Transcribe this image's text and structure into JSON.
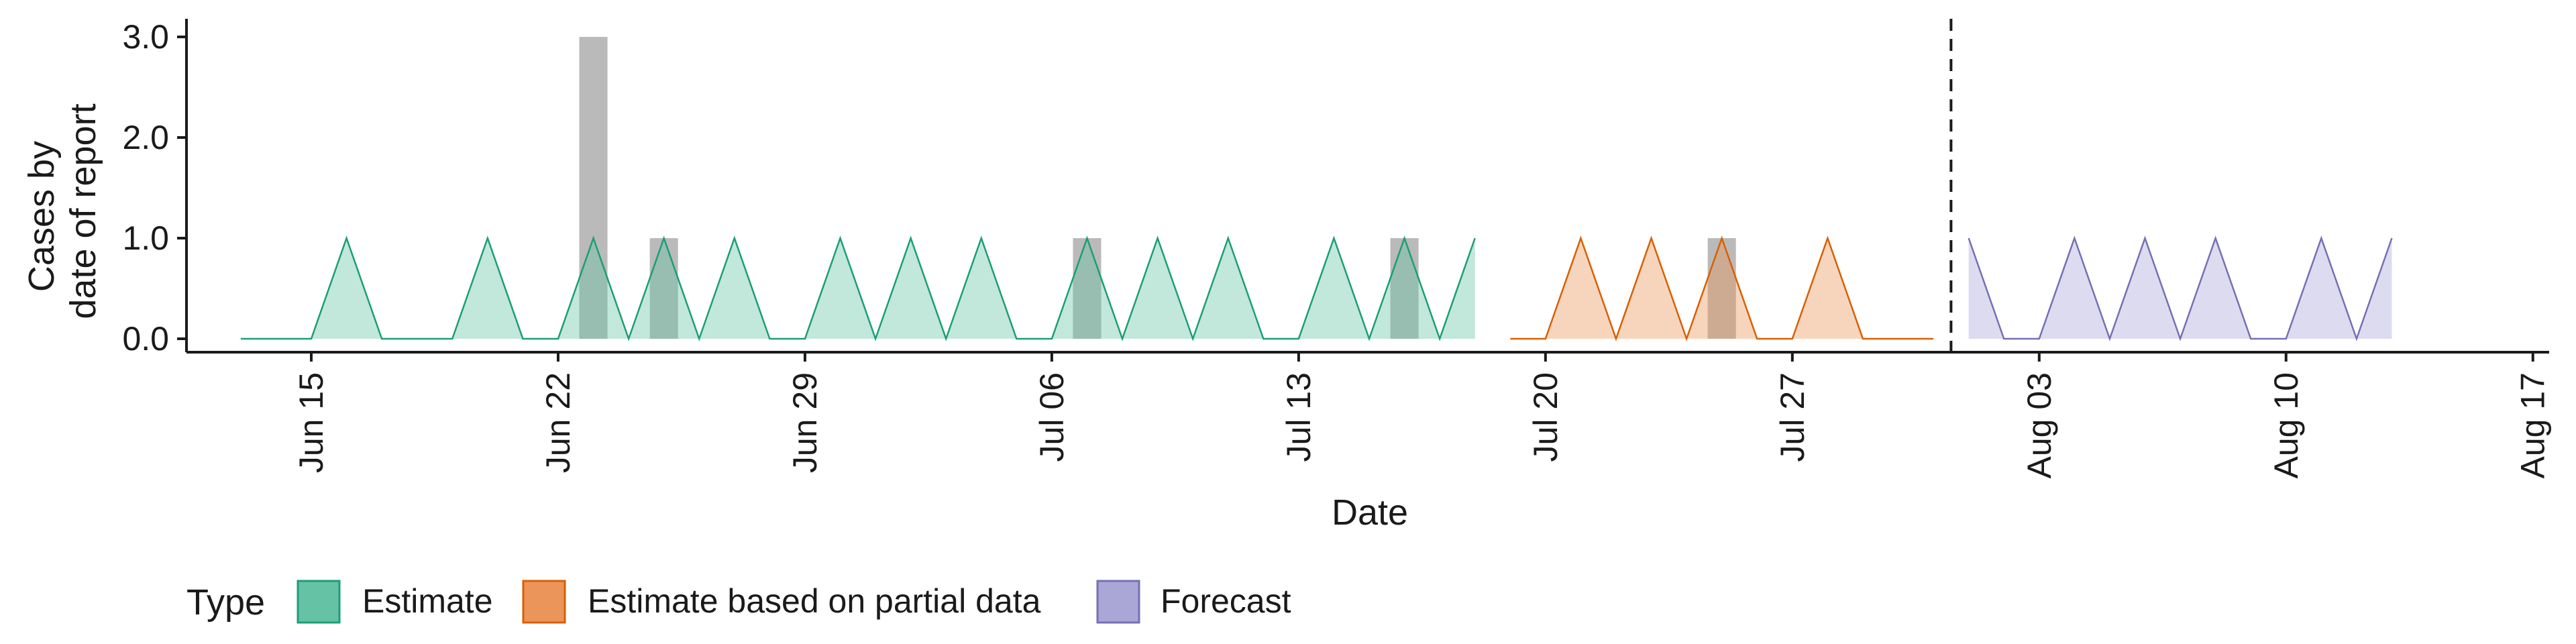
{
  "chart_data": {
    "type": "area",
    "xlabel": "Date",
    "ylabel_lines": [
      "Cases by",
      "date of report"
    ],
    "x_ticks": [
      "Jun 15",
      "Jun 22",
      "Jun 29",
      "Jul 06",
      "Jul 13",
      "Jul 20",
      "Jul 27",
      "Aug 03",
      "Aug 10",
      "Aug 17"
    ],
    "y_ticks": [
      "0.0",
      "1.0",
      "2.0",
      "3.0"
    ],
    "ylim": [
      0,
      3.1
    ],
    "x_start": "2020-06-13",
    "x_end": "2020-08-17",
    "forecast_start": "2020-07-31",
    "reported_cases": [
      {
        "date": "2020-06-23",
        "value": 3
      },
      {
        "date": "2020-06-25",
        "value": 1
      },
      {
        "date": "2020-07-07",
        "value": 1
      },
      {
        "date": "2020-07-16",
        "value": 1
      },
      {
        "date": "2020-07-25",
        "value": 1
      }
    ],
    "series": [
      {
        "name": "Estimate",
        "color": "#1b9e77",
        "x": [
          "2020-06-13",
          "2020-06-14",
          "2020-06-15",
          "2020-06-16",
          "2020-06-17",
          "2020-06-18",
          "2020-06-19",
          "2020-06-20",
          "2020-06-21",
          "2020-06-22",
          "2020-06-23",
          "2020-06-24",
          "2020-06-25",
          "2020-06-26",
          "2020-06-27",
          "2020-06-28",
          "2020-06-29",
          "2020-06-30",
          "2020-07-01",
          "2020-07-02",
          "2020-07-03",
          "2020-07-04",
          "2020-07-05",
          "2020-07-06",
          "2020-07-07",
          "2020-07-08",
          "2020-07-09",
          "2020-07-10",
          "2020-07-11",
          "2020-07-12",
          "2020-07-13",
          "2020-07-14",
          "2020-07-15",
          "2020-07-16",
          "2020-07-17",
          "2020-07-18"
        ],
        "values": [
          0,
          0,
          0,
          1,
          0,
          0,
          0,
          1,
          0,
          0,
          1,
          0,
          1,
          0,
          1,
          0,
          0,
          1,
          0,
          1,
          0,
          1,
          0,
          0,
          1,
          0,
          1,
          0,
          1,
          0,
          0,
          1,
          0,
          1,
          0,
          1
        ]
      },
      {
        "name": "Estimate based on partial data",
        "color": "#d95f02",
        "x": [
          "2020-07-19",
          "2020-07-20",
          "2020-07-21",
          "2020-07-22",
          "2020-07-23",
          "2020-07-24",
          "2020-07-25",
          "2020-07-26",
          "2020-07-27",
          "2020-07-28",
          "2020-07-29",
          "2020-07-30",
          "2020-07-31"
        ],
        "values": [
          0,
          0,
          1,
          0,
          1,
          0,
          1,
          0,
          0,
          1,
          0,
          0,
          0
        ]
      },
      {
        "name": "Forecast",
        "color": "#7570b3",
        "x": [
          "2020-08-01",
          "2020-08-02",
          "2020-08-03",
          "2020-08-04",
          "2020-08-05",
          "2020-08-06",
          "2020-08-07",
          "2020-08-08",
          "2020-08-09",
          "2020-08-10",
          "2020-08-11",
          "2020-08-12",
          "2020-08-13"
        ],
        "values": [
          1,
          0,
          0,
          1,
          0,
          1,
          0,
          1,
          0,
          0,
          1,
          0,
          1
        ]
      }
    ],
    "legend": {
      "title": "Type",
      "position": "bottom",
      "entries": [
        "Estimate",
        "Estimate based on partial data",
        "Forecast"
      ],
      "fills": [
        "#66c2a5",
        "#eb955b",
        "#aaa6d6"
      ],
      "strokes": [
        "#1b9e77",
        "#d95f02",
        "#7570b3"
      ]
    },
    "grid": false
  }
}
